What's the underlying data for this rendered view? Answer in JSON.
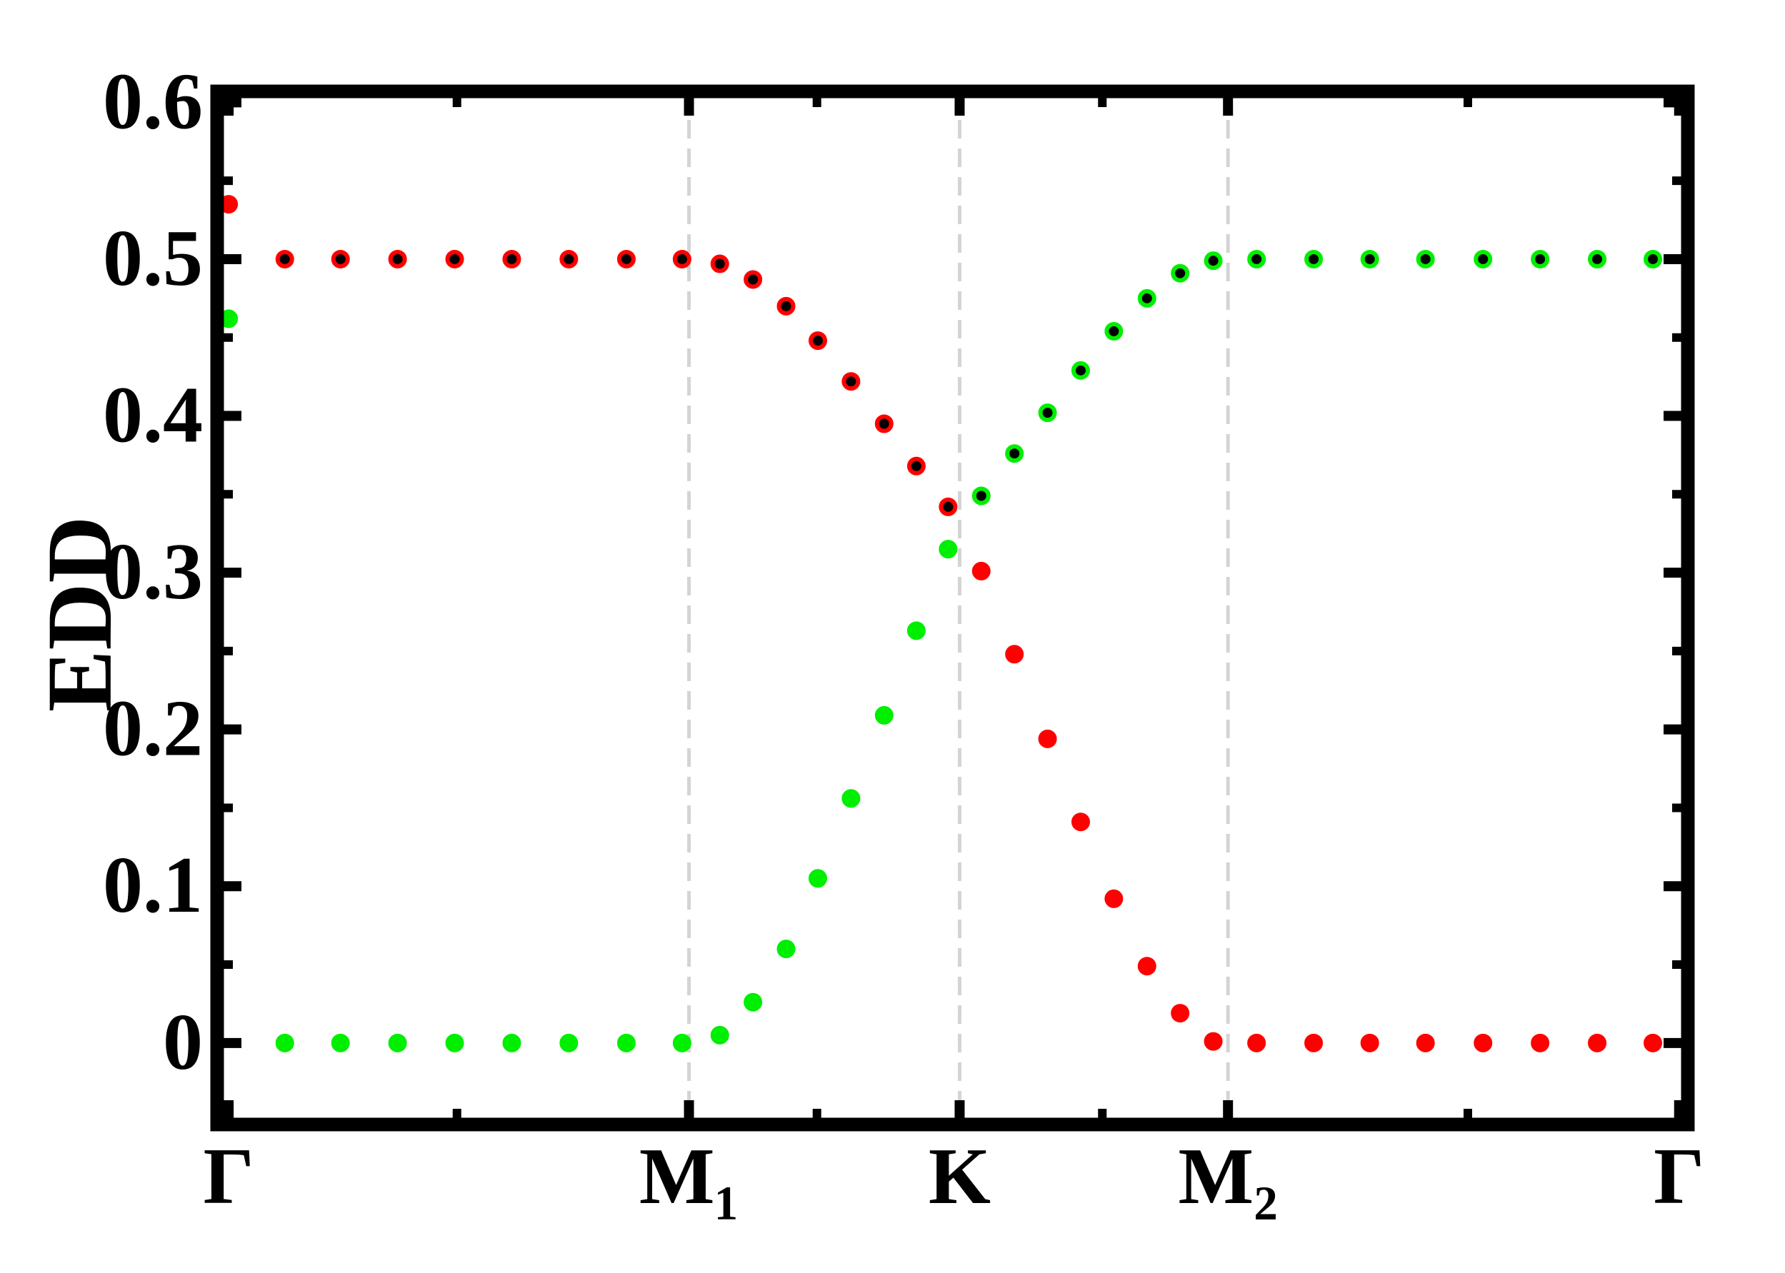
{
  "chart_data": {
    "type": "scatter",
    "ylabel": "EDD",
    "xlim": [
      -0.025,
      3.17
    ],
    "ylim": [
      -0.052,
      0.607
    ],
    "xticks": [
      {
        "value": 0,
        "label": "Γ"
      },
      {
        "value": 1.0,
        "label": "M₁"
      },
      {
        "value": 1.588,
        "label": "K"
      },
      {
        "value": 2.171,
        "label": "M₂"
      },
      {
        "value": 3.151,
        "label": "Γ"
      }
    ],
    "yticks": [
      0,
      0.1,
      0.2,
      0.3,
      0.4,
      0.5,
      0.6
    ],
    "xminorticks": [
      0.496,
      1.278,
      1.898,
      2.692
    ],
    "yminorticks": [
      0.05,
      0.15,
      0.25,
      0.35,
      0.45,
      0.55
    ],
    "xgrid": true,
    "series": [
      {
        "color": "#000000",
        "edgecolor": "#ff0000",
        "x": [
          0.122,
          0.243,
          0.367,
          0.491,
          0.615,
          0.739,
          0.864,
          0.985,
          1.067,
          1.139,
          1.211,
          1.28,
          1.352,
          1.424,
          1.494,
          1.563
        ],
        "values": [
          0.5,
          0.5,
          0.5,
          0.5,
          0.5,
          0.5,
          0.5,
          0.5,
          0.497,
          0.487,
          0.47,
          0.448,
          0.422,
          0.395,
          0.368,
          0.342
        ]
      },
      {
        "color": "#ff0000",
        "edgecolor": "#ff0000",
        "x": [
          0,
          1.635,
          1.707,
          1.779,
          1.851,
          1.923,
          1.995,
          2.067,
          2.139,
          2.233,
          2.357,
          2.479,
          2.6,
          2.725,
          2.849,
          2.973,
          3.094
        ],
        "values": [
          0.535,
          0.301,
          0.248,
          0.194,
          0.141,
          0.092,
          0.049,
          0.019,
          0.001,
          0,
          0,
          0,
          0,
          0,
          0,
          0,
          0
        ]
      },
      {
        "color": "#00ee00",
        "edgecolor": "#00ee00",
        "x": [
          0,
          0.122,
          0.243,
          0.367,
          0.491,
          0.615,
          0.739,
          0.864,
          0.985,
          1.067,
          1.139,
          1.211,
          1.28,
          1.352,
          1.424,
          1.494,
          1.563
        ],
        "values": [
          0.462,
          0,
          0,
          0,
          0,
          0,
          0,
          0,
          0,
          0.005,
          0.026,
          0.06,
          0.105,
          0.156,
          0.209,
          0.263,
          0.315
        ]
      },
      {
        "color": "#000000",
        "edgecolor": "#00ee00",
        "x": [
          1.635,
          1.707,
          1.779,
          1.851,
          1.923,
          1.995,
          2.067,
          2.139,
          2.233,
          2.357,
          2.479,
          2.6,
          2.725,
          2.849,
          2.973,
          3.094
        ],
        "values": [
          0.349,
          0.376,
          0.402,
          0.429,
          0.454,
          0.475,
          0.491,
          0.499,
          0.5,
          0.5,
          0.5,
          0.5,
          0.5,
          0.5,
          0.5,
          0.5
        ]
      }
    ]
  }
}
